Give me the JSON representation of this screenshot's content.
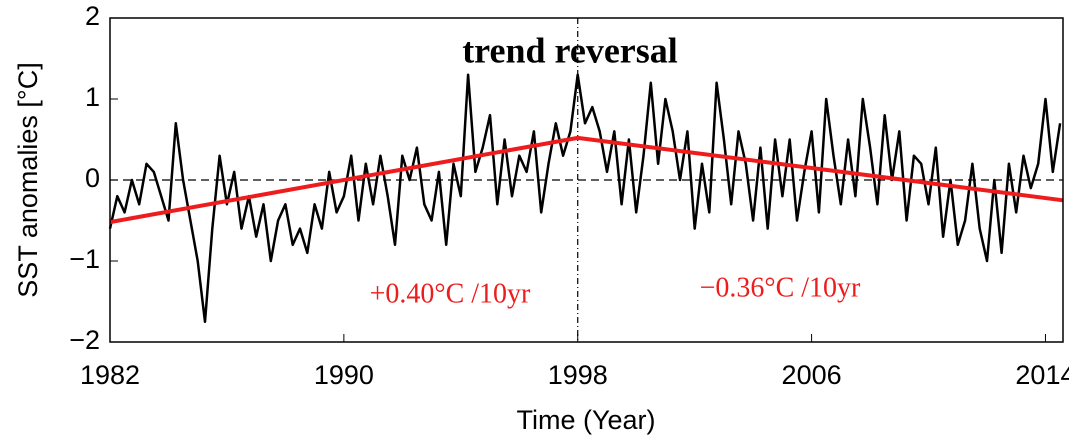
{
  "chart_data": {
    "type": "line",
    "ylabel": "SST anomalies  [°C]",
    "xlabel": "Time (Year)",
    "annotations": [
      "trend reversal",
      "+0.40°C /10yr",
      "−0.36°C /10yr"
    ],
    "xlim": [
      1982,
      2014.6
    ],
    "ylim": [
      -2,
      2
    ],
    "xticks": [
      1982,
      1990,
      1998,
      2006,
      2014
    ],
    "yticks": [
      {
        "value": -2,
        "label": "−2"
      },
      {
        "value": -1,
        "label": "−1"
      },
      0,
      1,
      2
    ],
    "hline": 0,
    "vline": 1998,
    "series": [
      {
        "color": "#000000",
        "x": [
          1982,
          1982.25,
          1982.5,
          1982.75,
          1983,
          1983.25,
          1983.5,
          1983.75,
          1984,
          1984.25,
          1984.5,
          1984.75,
          1985,
          1985.25,
          1985.5,
          1985.75,
          1986,
          1986.25,
          1986.5,
          1986.75,
          1987,
          1987.25,
          1987.5,
          1987.75,
          1988,
          1988.25,
          1988.5,
          1988.75,
          1989,
          1989.25,
          1989.5,
          1989.75,
          1990,
          1990.25,
          1990.5,
          1990.75,
          1991,
          1991.25,
          1991.5,
          1991.75,
          1992,
          1992.25,
          1992.5,
          1992.75,
          1993,
          1993.25,
          1993.5,
          1993.75,
          1994,
          1994.25,
          1994.5,
          1994.75,
          1995,
          1995.25,
          1995.5,
          1995.75,
          1996,
          1996.25,
          1996.5,
          1996.75,
          1997,
          1997.25,
          1997.5,
          1997.75,
          1998,
          1998.25,
          1998.5,
          1998.75,
          1999,
          1999.25,
          1999.5,
          1999.75,
          2000,
          2000.25,
          2000.5,
          2000.75,
          2001,
          2001.25,
          2001.5,
          2001.75,
          2002,
          2002.25,
          2002.5,
          2002.75,
          2003,
          2003.25,
          2003.5,
          2003.75,
          2004,
          2004.25,
          2004.5,
          2004.75,
          2005,
          2005.25,
          2005.5,
          2005.75,
          2006,
          2006.25,
          2006.5,
          2006.75,
          2007,
          2007.25,
          2007.5,
          2007.75,
          2008,
          2008.25,
          2008.5,
          2008.75,
          2009,
          2009.25,
          2009.5,
          2009.75,
          2010,
          2010.25,
          2010.5,
          2010.75,
          2011,
          2011.25,
          2011.5,
          2011.75,
          2012,
          2012.25,
          2012.5,
          2012.75,
          2013,
          2013.25,
          2013.5,
          2013.75,
          2014,
          2014.25,
          2014.5
        ],
        "values": [
          -0.6,
          -0.2,
          -0.4,
          0.0,
          -0.3,
          0.2,
          0.1,
          -0.2,
          -0.5,
          0.7,
          0.0,
          -0.5,
          -1.0,
          -1.75,
          -0.6,
          0.3,
          -0.3,
          0.1,
          -0.6,
          -0.2,
          -0.7,
          -0.3,
          -1.0,
          -0.5,
          -0.3,
          -0.8,
          -0.6,
          -0.9,
          -0.3,
          -0.6,
          0.1,
          -0.4,
          -0.2,
          0.3,
          -0.5,
          0.2,
          -0.3,
          0.3,
          -0.2,
          -0.8,
          0.3,
          0.0,
          0.4,
          -0.3,
          -0.5,
          0.1,
          -0.8,
          0.2,
          -0.2,
          1.3,
          0.1,
          0.4,
          0.8,
          -0.3,
          0.5,
          -0.2,
          0.3,
          0.1,
          0.6,
          -0.4,
          0.2,
          0.7,
          0.3,
          0.6,
          1.3,
          0.7,
          0.9,
          0.6,
          0.1,
          0.6,
          -0.3,
          0.5,
          -0.4,
          0.3,
          1.2,
          0.2,
          1.0,
          0.6,
          0.0,
          0.6,
          -0.6,
          0.2,
          -0.4,
          1.2,
          0.5,
          -0.3,
          0.6,
          0.2,
          -0.5,
          0.4,
          -0.6,
          0.5,
          -0.2,
          0.5,
          -0.5,
          0.1,
          0.6,
          -0.4,
          1.0,
          0.3,
          -0.3,
          0.5,
          -0.2,
          1.0,
          0.4,
          -0.3,
          0.8,
          0.0,
          0.6,
          -0.5,
          0.3,
          0.2,
          -0.3,
          0.4,
          -0.7,
          0.0,
          -0.8,
          -0.5,
          0.2,
          -0.6,
          -1.0,
          0.0,
          -0.9,
          0.2,
          -0.4,
          0.3,
          -0.1,
          0.2,
          1.0,
          0.1,
          0.7
        ]
      },
      {
        "color": "#ee1c1c",
        "x": [
          1982,
          1998,
          2014.6
        ],
        "values": [
          -0.52,
          0.52,
          -0.25
        ]
      }
    ]
  }
}
